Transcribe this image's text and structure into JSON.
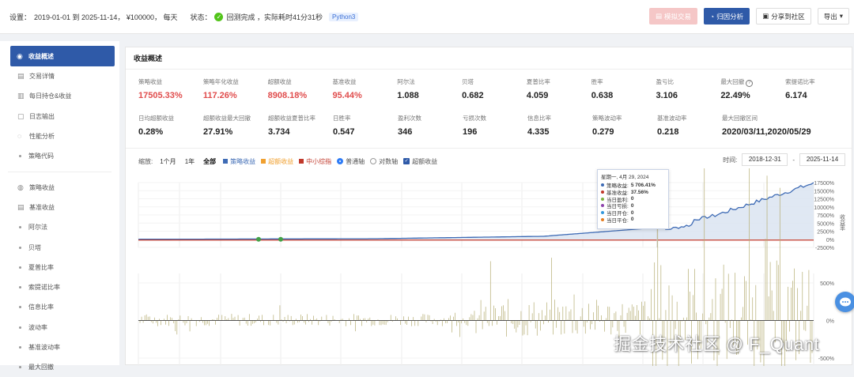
{
  "topbar": {
    "settings_label": "设置：",
    "settings_text": "2019-01-01 到 2025-11-14， ¥100000， 每天",
    "status_label": "状态：",
    "status_text": "回测完成 ，实际耗时41分31秒",
    "python_tag": "Python3",
    "buttons": {
      "simulate": "模拟交易",
      "analysis": "归因分析",
      "share": "分享到社区",
      "export": "导出"
    }
  },
  "sidebar": {
    "items": [
      {
        "label": "收益概述",
        "icon": "chart-icon"
      },
      {
        "label": "交易详情",
        "icon": "list-icon"
      },
      {
        "label": "每日持仓&收益",
        "icon": "bar-icon"
      },
      {
        "label": "日志输出",
        "icon": "log-icon"
      },
      {
        "label": "性能分析",
        "icon": "gauge-icon"
      },
      {
        "label": "策略代码",
        "icon": "dot"
      },
      {
        "label": "策略收益",
        "icon": "bulb-icon"
      },
      {
        "label": "基准收益",
        "icon": "list-icon"
      },
      {
        "label": "阿尔法",
        "icon": "dot"
      },
      {
        "label": "贝塔",
        "icon": "dot"
      },
      {
        "label": "夏普比率",
        "icon": "dot"
      },
      {
        "label": "索提诺比率",
        "icon": "dot"
      },
      {
        "label": "信息比率",
        "icon": "dot"
      },
      {
        "label": "波动率",
        "icon": "dot"
      },
      {
        "label": "基准波动率",
        "icon": "dot"
      },
      {
        "label": "最大回撤",
        "icon": "dot"
      }
    ]
  },
  "main": {
    "title": "收益概述",
    "metrics_row1": [
      {
        "label": "策略收益",
        "value": "17505.33%",
        "color": "red"
      },
      {
        "label": "策略年化收益",
        "value": "117.26%",
        "color": "red"
      },
      {
        "label": "超额收益",
        "value": "8908.18%",
        "color": "red"
      },
      {
        "label": "基准收益",
        "value": "95.44%",
        "color": "red"
      },
      {
        "label": "阿尔法",
        "value": "1.088",
        "color": "normal"
      },
      {
        "label": "贝塔",
        "value": "0.682",
        "color": "normal"
      },
      {
        "label": "夏普比率",
        "value": "4.059",
        "color": "normal"
      },
      {
        "label": "胜率",
        "value": "0.638",
        "color": "normal"
      },
      {
        "label": "盈亏比",
        "value": "3.106",
        "color": "normal"
      },
      {
        "label": "最大回撤",
        "value": "22.49%",
        "color": "normal"
      },
      {
        "label": "索提诺比率",
        "value": "6.174",
        "color": "normal"
      }
    ],
    "metrics_row2": [
      {
        "label": "日均超额收益",
        "value": "0.28%"
      },
      {
        "label": "超额收益最大回撤",
        "value": "27.91%"
      },
      {
        "label": "超额收益夏普比率",
        "value": "3.734"
      },
      {
        "label": "日胜率",
        "value": "0.547"
      },
      {
        "label": "盈利次数",
        "value": "346"
      },
      {
        "label": "亏损次数",
        "value": "196"
      },
      {
        "label": "信息比率",
        "value": "4.335"
      },
      {
        "label": "策略波动率",
        "value": "0.279"
      },
      {
        "label": "基准波动率",
        "value": "0.218"
      },
      {
        "label": "最大回撤区间",
        "value": "2020/03/11,2020/05/29"
      }
    ],
    "controls": {
      "zoom_label": "缩放:",
      "zoom_1m": "1个月",
      "zoom_1y": "1年",
      "zoom_all": "全部",
      "legend_strategy": "策略收益",
      "legend_excess": "超额收益",
      "legend_bench": "中小综指",
      "axis_normal": "普通轴",
      "axis_log": "对数轴",
      "excess_check": "超额收益",
      "time_label": "时间:",
      "start_date": "2018-12-31",
      "dash": "-",
      "end_date": "2025-11-14"
    },
    "tooltip": {
      "date": "星期一, 4月 29, 2024",
      "rows": [
        {
          "label": "策略收益:",
          "value": "5 706.41%",
          "color": "#3e6bb5"
        },
        {
          "label": "基准收益:",
          "value": "37.56%",
          "color": "#c0392b"
        },
        {
          "label": "当日盈利:",
          "value": "0",
          "color": "#7cb342"
        },
        {
          "label": "当日亏损:",
          "value": "0",
          "color": "#8e44ad"
        },
        {
          "label": "当日开仓:",
          "value": "0",
          "color": "#3498db"
        },
        {
          "label": "当日平仓:",
          "value": "0",
          "color": "#e67e22"
        }
      ]
    }
  },
  "chart_data": {
    "type": "line",
    "series": [
      {
        "name": "策略收益",
        "color": "#3e6bb5"
      },
      {
        "name": "超额收益",
        "color": "#f0a030"
      },
      {
        "name": "中小综指",
        "color": "#c0392b"
      }
    ],
    "y_ticks": [
      "17500%",
      "15000%",
      "12500%",
      "10000%",
      "7500%",
      "5000%",
      "2500%",
      "0%",
      "-2500%"
    ],
    "y_range": [
      -2500,
      17500
    ],
    "y_axis_label": "收益率",
    "sub_y_ticks": [
      "500%",
      "0%",
      "-500%"
    ],
    "sub_y_range": [
      -500,
      500
    ]
  },
  "watermark": "掘金技术社区 @ F_Quant"
}
